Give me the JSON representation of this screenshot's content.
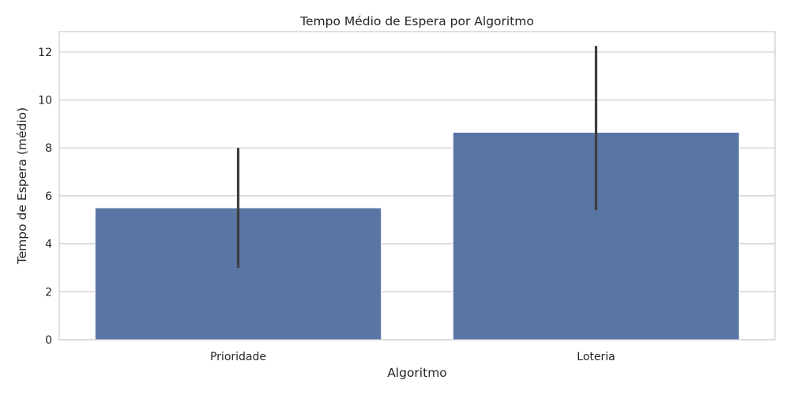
{
  "chart_data": {
    "type": "bar",
    "title": "Tempo Médio de Espera por Algoritmo",
    "xlabel": "Algoritmo",
    "ylabel": "Tempo de Espera (médio)",
    "categories": [
      "Prioridade",
      "Loteria"
    ],
    "values": [
      5.5,
      8.65
    ],
    "error_bars": [
      {
        "low": 3.0,
        "high": 8.0
      },
      {
        "low": 5.4,
        "high": 12.25
      }
    ],
    "ylim": [
      0,
      12.85
    ],
    "yticks": [
      0,
      2,
      4,
      6,
      8,
      10,
      12
    ],
    "grid": "horizontal",
    "colors": {
      "bar": "#5975a4",
      "errorbar": "#3d3d3d",
      "grid": "#cccccc"
    }
  }
}
